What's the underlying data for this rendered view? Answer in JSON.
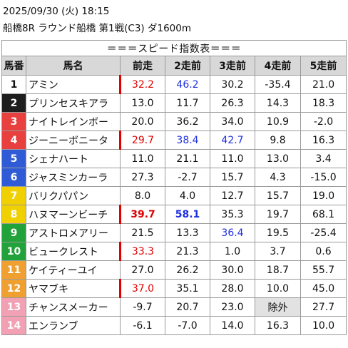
{
  "header": {
    "datetime": "2025/09/30 (火) 18:15",
    "race": "船橋8R ラウンド船橋 第1戦(C3) ダ1600m"
  },
  "table": {
    "title": "＝＝＝スピード指数表＝＝＝",
    "columns": [
      "馬番",
      "馬名",
      "前走",
      "2走前",
      "3走前",
      "4走前",
      "5走前"
    ],
    "rows": [
      {
        "no": "1",
        "name": "アミン",
        "v": [
          "32.2",
          "46.2",
          "30.2",
          "-35.4",
          "21.0"
        ]
      },
      {
        "no": "2",
        "name": "プリンセスキアラ",
        "v": [
          "13.0",
          "11.7",
          "26.3",
          "14.3",
          "18.3"
        ]
      },
      {
        "no": "3",
        "name": "ナイトレインボー",
        "v": [
          "20.0",
          "36.2",
          "34.0",
          "10.9",
          "-2.0"
        ]
      },
      {
        "no": "4",
        "name": "ジーニーボニータ",
        "v": [
          "29.7",
          "38.4",
          "42.7",
          "9.8",
          "16.3"
        ]
      },
      {
        "no": "5",
        "name": "シェナハート",
        "v": [
          "11.0",
          "21.1",
          "11.0",
          "13.0",
          "3.4"
        ]
      },
      {
        "no": "6",
        "name": "ジャスミンカーラ",
        "v": [
          "27.3",
          "-2.7",
          "15.7",
          "4.3",
          "-15.0"
        ]
      },
      {
        "no": "7",
        "name": "バリクパパン",
        "v": [
          "8.0",
          "4.0",
          "12.7",
          "15.7",
          "19.0"
        ]
      },
      {
        "no": "8",
        "name": "ハヌマーンビーチ",
        "v": [
          "39.7",
          "58.1",
          "35.3",
          "19.7",
          "68.1"
        ]
      },
      {
        "no": "9",
        "name": "アストロメアリー",
        "v": [
          "21.5",
          "13.3",
          "36.4",
          "19.5",
          "-25.4"
        ]
      },
      {
        "no": "10",
        "name": "ビュークレスト",
        "v": [
          "33.3",
          "21.3",
          "1.0",
          "3.7",
          "0.6"
        ]
      },
      {
        "no": "11",
        "name": "ケイティーユイ",
        "v": [
          "27.0",
          "26.2",
          "30.0",
          "18.7",
          "55.7"
        ]
      },
      {
        "no": "12",
        "name": "ヤマブキ",
        "v": [
          "37.0",
          "35.1",
          "28.0",
          "10.0",
          "45.0"
        ]
      },
      {
        "no": "13",
        "name": "チャンスメーカー",
        "v": [
          "-9.7",
          "20.7",
          "23.0",
          "除外",
          "27.7"
        ]
      },
      {
        "no": "14",
        "name": "エンランブ",
        "v": [
          "-6.1",
          "-7.0",
          "14.0",
          "16.3",
          "10.0"
        ]
      }
    ]
  },
  "colors": {
    "frame": [
      "#ffffff",
      "#1e1e1e",
      "#e8403f",
      "#e8403f",
      "#2f5bd6",
      "#2f5bd6",
      "#f0d000",
      "#f0d000",
      "#22a23a",
      "#22a23a",
      "#f0a030",
      "#f0a030",
      "#f2a0b4",
      "#f2a0b4"
    ],
    "frame_text": [
      "#111111",
      "#ffffff",
      "#ffffff",
      "#ffffff",
      "#ffffff",
      "#ffffff",
      "#ffffff",
      "#ffffff",
      "#ffffff",
      "#ffffff",
      "#ffffff",
      "#ffffff",
      "#ffffff",
      "#ffffff"
    ],
    "value_red": "#e00000",
    "value_blue": "#1f2fe0"
  }
}
